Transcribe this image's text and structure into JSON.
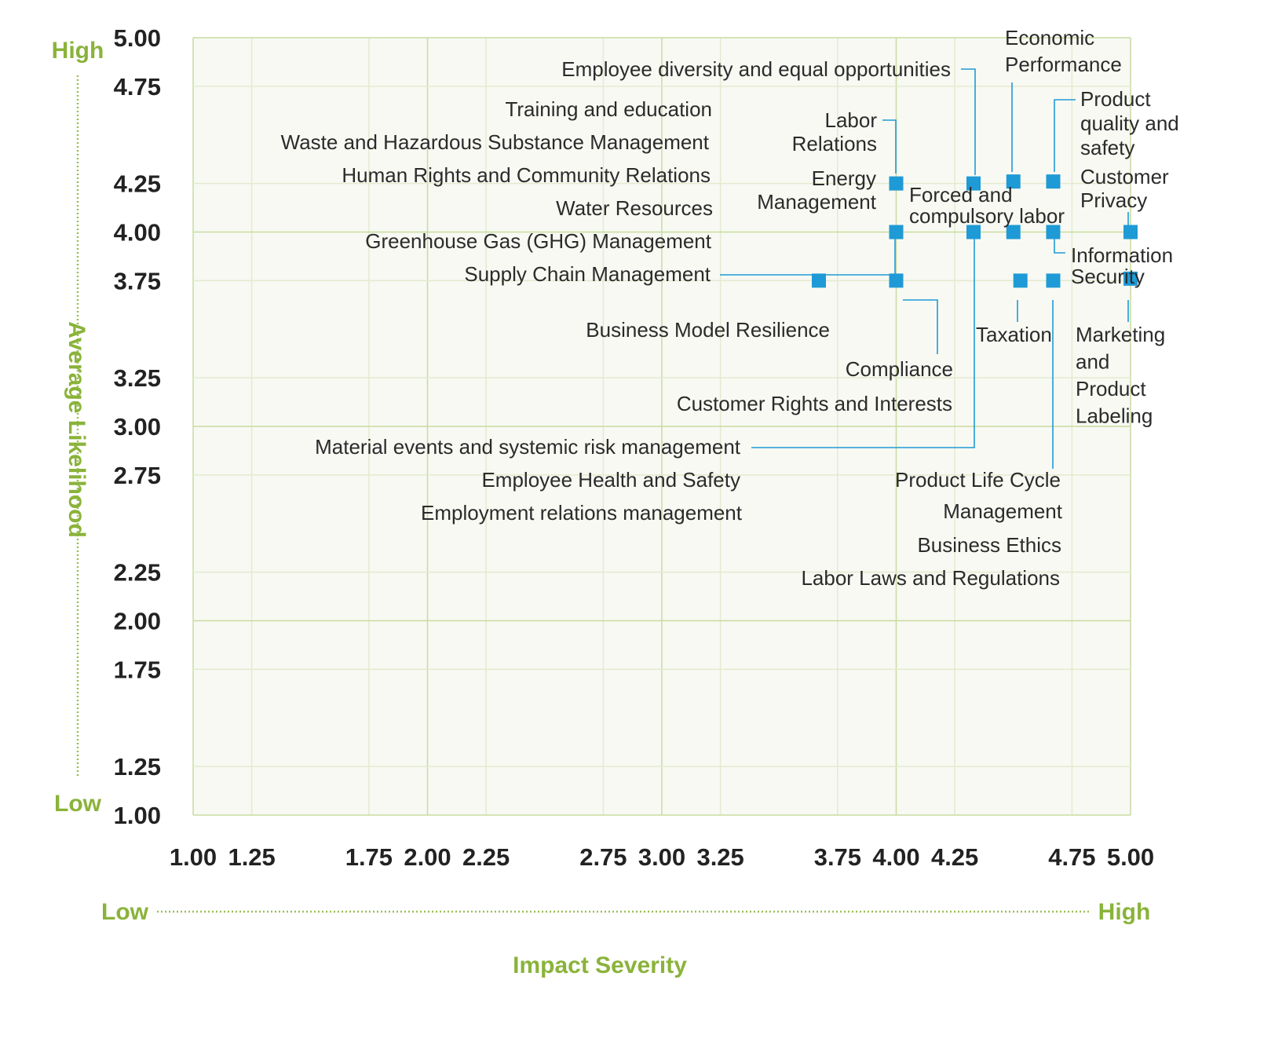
{
  "colors": {
    "plot_background": "#f8f9f3",
    "grid_minor": "#e3ebcf",
    "grid_major": "#c9dba0",
    "marker": "#1e9ad6",
    "accent": "#8ab33a"
  },
  "chart_data": {
    "type": "scatter",
    "title": "",
    "xlabel": "Impact Severity",
    "ylabel": "Average Likelihood",
    "x_low_label": "Low",
    "x_high_label": "High",
    "y_low_label": "Low",
    "y_high_label": "High",
    "xlim": [
      1.0,
      5.0
    ],
    "ylim": [
      1.0,
      5.0
    ],
    "x_ticks": [
      "1.00",
      "1.25",
      "1.75",
      "2.00",
      "2.25",
      "2.75",
      "3.00",
      "3.25",
      "3.75",
      "4.00",
      "4.25",
      "4.75",
      "5.00"
    ],
    "y_ticks": [
      "5.00",
      "4.75",
      "4.25",
      "4.00",
      "3.75",
      "3.25",
      "3.00",
      "2.75",
      "2.25",
      "2.00",
      "1.75",
      "1.25",
      "1.00"
    ],
    "grid": true,
    "points": [
      {
        "x": 4.0,
        "y": 4.25
      },
      {
        "x": 4.33,
        "y": 4.25
      },
      {
        "x": 4.5,
        "y": 4.26
      },
      {
        "x": 4.67,
        "y": 4.26
      },
      {
        "x": 4.0,
        "y": 4.0
      },
      {
        "x": 4.33,
        "y": 4.0
      },
      {
        "x": 4.5,
        "y": 4.0
      },
      {
        "x": 4.67,
        "y": 4.0
      },
      {
        "x": 5.0,
        "y": 4.0
      },
      {
        "x": 3.67,
        "y": 3.75
      },
      {
        "x": 4.0,
        "y": 3.75
      },
      {
        "x": 4.53,
        "y": 3.75
      },
      {
        "x": 4.67,
        "y": 3.75
      },
      {
        "x": 5.0,
        "y": 3.76
      }
    ],
    "annotations": [
      {
        "lines": [
          "Employee diversity and equal opportunities"
        ],
        "anchor": "end"
      },
      {
        "lines": [
          "Economic",
          "Performance"
        ],
        "anchor": "start"
      },
      {
        "lines": [
          "Product",
          "quality and",
          "safety"
        ],
        "anchor": "start"
      },
      {
        "lines": [
          "Training and education"
        ],
        "anchor": "end"
      },
      {
        "lines": [
          "Labor",
          "Relations"
        ],
        "anchor": "end"
      },
      {
        "lines": [
          "Waste and Hazardous Substance Management"
        ],
        "anchor": "end"
      },
      {
        "lines": [
          "Human Rights and Community Relations"
        ],
        "anchor": "end"
      },
      {
        "lines": [
          "Energy",
          "Management"
        ],
        "anchor": "end"
      },
      {
        "lines": [
          "Customer",
          "Privacy"
        ],
        "anchor": "start"
      },
      {
        "lines": [
          "Forced and",
          "compulsory labor"
        ],
        "anchor": "start"
      },
      {
        "lines": [
          "Water Resources"
        ],
        "anchor": "end"
      },
      {
        "lines": [
          "Greenhouse Gas (GHG) Management"
        ],
        "anchor": "end"
      },
      {
        "lines": [
          "Information",
          "Security"
        ],
        "anchor": "start"
      },
      {
        "lines": [
          "Supply Chain Management"
        ],
        "anchor": "end"
      },
      {
        "lines": [
          "Business Model Resilience"
        ],
        "anchor": "end"
      },
      {
        "lines": [
          "Taxation"
        ],
        "anchor": "start"
      },
      {
        "lines": [
          "Marketing",
          "and",
          "Product",
          "Labeling"
        ],
        "anchor": "start"
      },
      {
        "lines": [
          "Compliance"
        ],
        "anchor": "end"
      },
      {
        "lines": [
          "Customer Rights and Interests"
        ],
        "anchor": "end"
      },
      {
        "lines": [
          "Material events and systemic risk management"
        ],
        "anchor": "end"
      },
      {
        "lines": [
          "Employee Health and Safety"
        ],
        "anchor": "end"
      },
      {
        "lines": [
          "Product Life Cycle"
        ],
        "anchor": "end"
      },
      {
        "lines": [
          "Management"
        ],
        "anchor": "end"
      },
      {
        "lines": [
          "Employment relations management"
        ],
        "anchor": "end"
      },
      {
        "lines": [
          "Business Ethics"
        ],
        "anchor": "end"
      },
      {
        "lines": [
          "Labor Laws and Regulations"
        ],
        "anchor": "end"
      }
    ]
  }
}
